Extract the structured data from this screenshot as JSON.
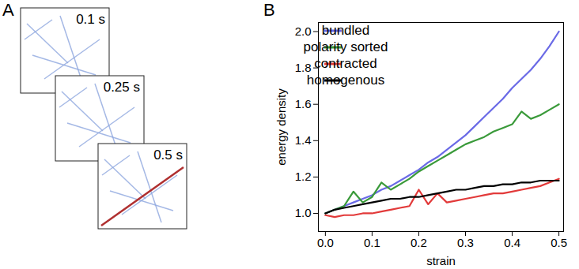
{
  "panel_a": {
    "letter": "A",
    "times": [
      "0.1 s",
      "0.25 s",
      "0.5 s"
    ]
  },
  "chart_data": {
    "letter": "B",
    "type": "line",
    "x_label": "strain",
    "y_label": "energy density",
    "x": [
      0,
      0.02,
      0.04,
      0.06,
      0.08,
      0.1,
      0.12,
      0.14,
      0.16,
      0.18,
      0.2,
      0.22,
      0.24,
      0.26,
      0.28,
      0.3,
      0.32,
      0.34,
      0.36,
      0.38,
      0.4,
      0.42,
      0.44,
      0.46,
      0.48,
      0.5
    ],
    "series": [
      {
        "name": "bundled",
        "color": "#6a6ae6",
        "values": [
          1.0,
          1.02,
          1.04,
          1.06,
          1.08,
          1.1,
          1.13,
          1.15,
          1.18,
          1.21,
          1.24,
          1.28,
          1.31,
          1.35,
          1.39,
          1.43,
          1.48,
          1.53,
          1.58,
          1.63,
          1.69,
          1.74,
          1.79,
          1.85,
          1.92,
          2.0
        ]
      },
      {
        "name": "polarity sorted",
        "color": "#3a9a3a",
        "values": [
          1.0,
          1.02,
          1.04,
          1.12,
          1.06,
          1.09,
          1.17,
          1.13,
          1.16,
          1.19,
          1.23,
          1.26,
          1.29,
          1.32,
          1.35,
          1.38,
          1.4,
          1.42,
          1.45,
          1.47,
          1.49,
          1.56,
          1.52,
          1.54,
          1.57,
          1.6
        ]
      },
      {
        "name": "contracted",
        "color": "#e23a3a",
        "values": [
          0.99,
          0.98,
          0.99,
          0.99,
          1.0,
          1.0,
          1.01,
          1.02,
          1.03,
          1.04,
          1.13,
          1.05,
          1.11,
          1.06,
          1.07,
          1.08,
          1.09,
          1.1,
          1.11,
          1.11,
          1.12,
          1.13,
          1.14,
          1.15,
          1.17,
          1.19
        ]
      },
      {
        "name": "homogenous",
        "color": "#000000",
        "values": [
          1.0,
          1.02,
          1.03,
          1.04,
          1.05,
          1.06,
          1.07,
          1.08,
          1.08,
          1.09,
          1.09,
          1.1,
          1.11,
          1.12,
          1.13,
          1.13,
          1.14,
          1.15,
          1.15,
          1.16,
          1.16,
          1.17,
          1.17,
          1.18,
          1.18,
          1.18
        ]
      }
    ],
    "xlim": [
      -0.015,
      0.51
    ],
    "ylim": [
      0.9,
      2.05
    ],
    "xticks": [
      {
        "value": 0,
        "label": "0.0"
      },
      0.1,
      0.2,
      0.3,
      0.4,
      0.5
    ],
    "yticks": [
      {
        "value": 1,
        "label": "1.0"
      },
      1.2,
      1.4,
      1.6,
      1.8,
      {
        "value": 2,
        "label": "2.0"
      }
    ],
    "grid": false,
    "legend": "upper left"
  }
}
